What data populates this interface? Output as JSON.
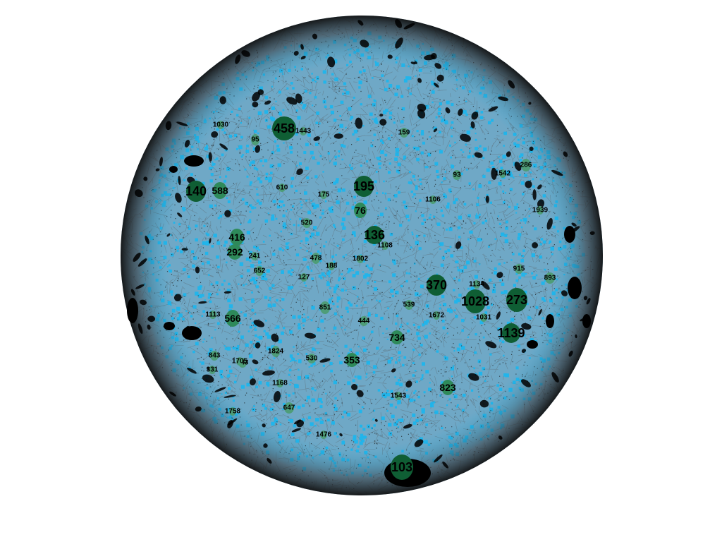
{
  "diagram": {
    "type": "network-graph",
    "colors": {
      "background": "#ffffff",
      "edge_dark": "#1a1a1a",
      "edge_gray": "#5c6770",
      "node_fill": "#18b6ee",
      "hub_dark": "#0f5e34",
      "hub_medium": "#2e8a5a",
      "hub_light": "#4e9d78",
      "blob": "#000000"
    },
    "hubs": [
      {
        "label": "458",
        "level": "dark"
      },
      {
        "label": "195",
        "level": "dark"
      },
      {
        "label": "140",
        "level": "dark"
      },
      {
        "label": "136",
        "level": "dark"
      },
      {
        "label": "370",
        "level": "dark"
      },
      {
        "label": "1028",
        "level": "dark"
      },
      {
        "label": "273",
        "level": "dark"
      },
      {
        "label": "1139",
        "level": "dark"
      },
      {
        "label": "103",
        "level": "dark"
      },
      {
        "label": "588",
        "level": "medium"
      },
      {
        "label": "416",
        "level": "medium"
      },
      {
        "label": "292",
        "level": "medium"
      },
      {
        "label": "566",
        "level": "medium"
      },
      {
        "label": "76",
        "level": "medium"
      },
      {
        "label": "823",
        "level": "medium"
      },
      {
        "label": "734",
        "level": "medium"
      },
      {
        "label": "353",
        "level": "medium"
      },
      {
        "label": "851",
        "level": "light"
      },
      {
        "label": "286",
        "level": "light"
      },
      {
        "label": "893",
        "level": "light"
      },
      {
        "label": "95",
        "level": "light"
      },
      {
        "label": "647",
        "level": "light"
      },
      {
        "label": "1824",
        "level": "light"
      },
      {
        "label": "478",
        "level": "light"
      },
      {
        "label": "652",
        "level": "light"
      },
      {
        "label": "520",
        "level": "light"
      },
      {
        "label": "843",
        "level": "light"
      },
      {
        "label": "444",
        "level": "light"
      },
      {
        "label": "530",
        "level": "light"
      },
      {
        "label": "539",
        "level": "light"
      },
      {
        "label": "915",
        "level": "light"
      },
      {
        "label": "159",
        "level": "light"
      },
      {
        "label": "93",
        "level": "light"
      },
      {
        "label": "610",
        "level": "light"
      },
      {
        "label": "175",
        "level": "light"
      },
      {
        "label": "188",
        "level": "light"
      },
      {
        "label": "241",
        "level": "light"
      },
      {
        "label": "127",
        "level": "light"
      },
      {
        "label": "1031",
        "level": "light"
      },
      {
        "label": "1443",
        "level": "light"
      },
      {
        "label": "1030",
        "level": "light"
      },
      {
        "label": "1672",
        "level": "light"
      },
      {
        "label": "1543",
        "level": "light"
      },
      {
        "label": "843",
        "level": "light"
      },
      {
        "label": "331",
        "level": "light"
      },
      {
        "label": "1705",
        "level": "light"
      },
      {
        "label": "1106",
        "level": "light"
      },
      {
        "label": "1542",
        "level": "light"
      },
      {
        "label": "1939",
        "level": "light"
      },
      {
        "label": "1108",
        "level": "light"
      },
      {
        "label": "1802",
        "level": "light"
      },
      {
        "label": "1476",
        "level": "light"
      },
      {
        "label": "1168",
        "level": "light"
      },
      {
        "label": "1113",
        "level": "light"
      },
      {
        "label": "1758",
        "level": "light"
      },
      {
        "label": "1134",
        "level": "light"
      }
    ]
  }
}
